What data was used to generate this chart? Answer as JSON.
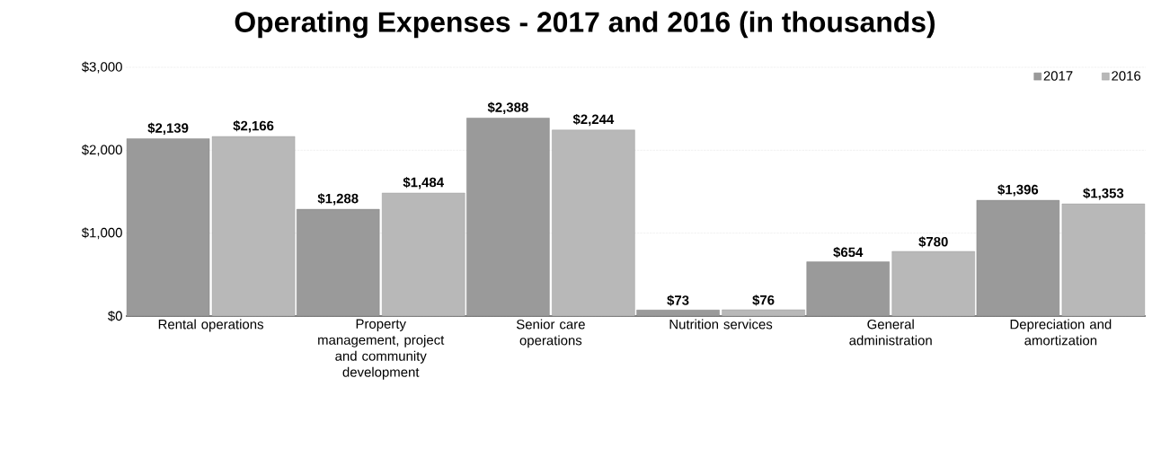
{
  "chart_data": {
    "type": "bar",
    "title": "Operating Expenses - 2017 and 2016  (in thousands)",
    "categories": [
      "Rental operations",
      "Property management, project and community development",
      "Senior care operations",
      "Nutrition services",
      "General administration",
      "Depreciation and amortization"
    ],
    "series": [
      {
        "name": "2017",
        "color": "#9a9a9a",
        "values": [
          2139,
          1288,
          2388,
          73,
          654,
          1396
        ],
        "value_labels": [
          "$2,139",
          "$1,288",
          "$2,388",
          "$73",
          "$654",
          "$1,396"
        ]
      },
      {
        "name": "2016",
        "color": "#b8b8b8",
        "values": [
          2166,
          1484,
          2244,
          76,
          780,
          1353
        ],
        "value_labels": [
          "$2,166",
          "$1,484",
          "$2,244",
          "$76",
          "$780",
          "$1,353"
        ]
      }
    ],
    "ylim": [
      0,
      3000
    ],
    "yticks": [
      {
        "value": 0,
        "label": "$0"
      },
      {
        "value": 1000,
        "label": "$1,000"
      },
      {
        "value": 2000,
        "label": "$2,000"
      },
      {
        "value": 3000,
        "label": "$3,000"
      }
    ],
    "grid": "y",
    "legend": "top right"
  }
}
